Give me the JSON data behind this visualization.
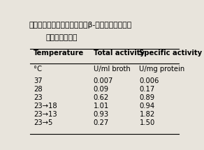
{
  "title_line1": "表１．大腸菌に於けるダイズβ-アミラーゼ生産の",
  "title_line2": "培養温度の効果",
  "col_headers": [
    "Temperature",
    "Total activity",
    "Specific activity"
  ],
  "sub_headers": [
    "°C",
    "U/ml broth",
    "U/mg protein"
  ],
  "rows": [
    [
      "37",
      "0.007",
      "0.006"
    ],
    [
      "28",
      "0.09",
      "0.17"
    ],
    [
      "23",
      "0.62",
      "0.89"
    ],
    [
      "23→18",
      "1.01",
      "0.94"
    ],
    [
      "23→13",
      "0.93",
      "1.82"
    ],
    [
      "23→5",
      "0.27",
      "1.50"
    ]
  ],
  "bg_color": "#e8e4dc",
  "text_color": "#000000",
  "header_fontsize": 7.2,
  "data_fontsize": 7.2,
  "title_fontsize": 7.8
}
